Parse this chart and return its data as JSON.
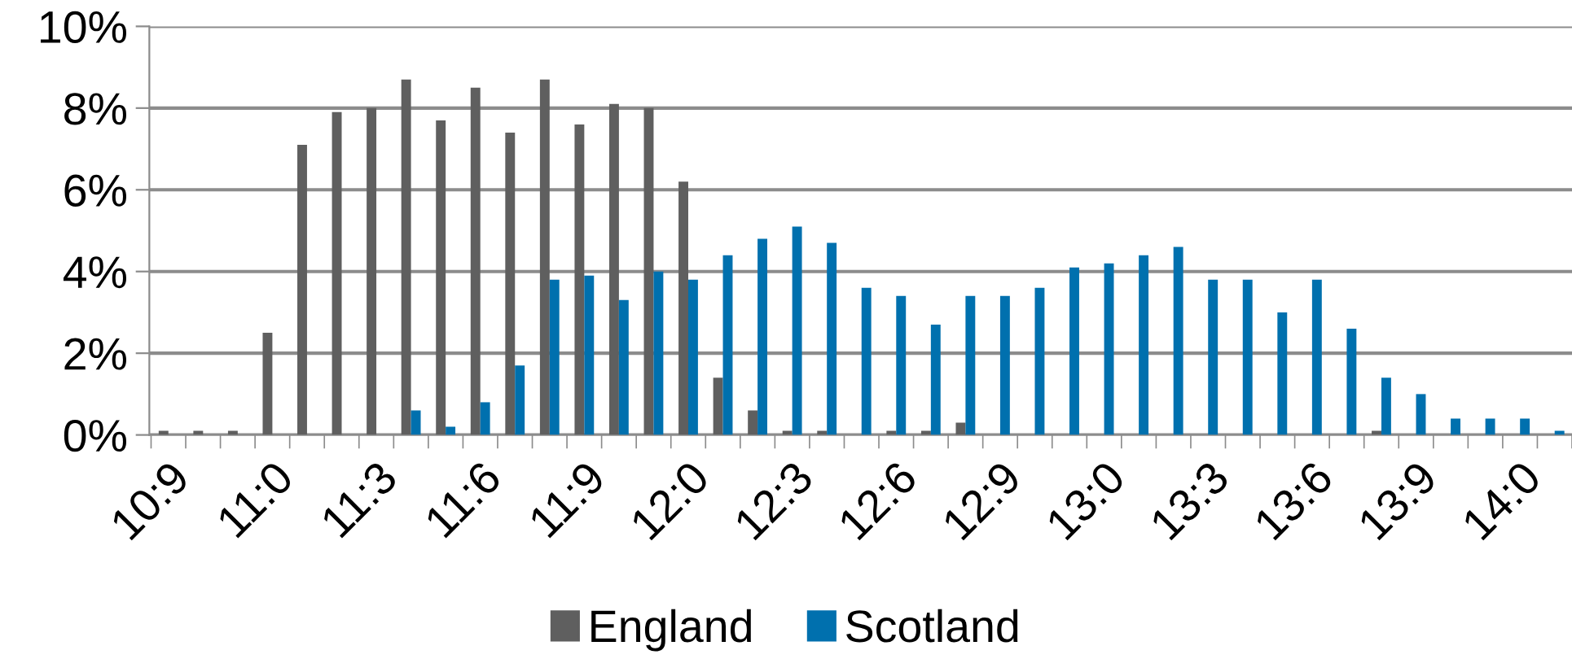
{
  "chart_data": {
    "type": "bar",
    "categories": [
      "10:9",
      null,
      null,
      "11:0",
      null,
      null,
      "11:3",
      null,
      null,
      "11:6",
      null,
      null,
      "11:9",
      null,
      null,
      "12:0",
      null,
      null,
      "12:3",
      null,
      null,
      "12:6",
      null,
      null,
      "12:9",
      null,
      null,
      "13:0",
      null,
      null,
      "13:3",
      null,
      null,
      "13:6",
      null,
      null,
      "13:9",
      null,
      null,
      "14:0",
      null
    ],
    "series": [
      {
        "name": "England",
        "color": "#5f5f5f",
        "values": [
          0.1,
          0.1,
          0.1,
          2.5,
          7.1,
          7.9,
          8.0,
          8.7,
          7.7,
          8.5,
          7.4,
          8.7,
          7.6,
          8.1,
          8.0,
          6.2,
          1.4,
          0.6,
          0.1,
          0.1,
          0,
          0.1,
          0.1,
          0.3,
          0,
          0,
          0,
          0,
          0,
          0,
          0,
          0,
          0,
          0,
          0,
          0.1,
          0,
          0,
          0,
          0,
          0
        ]
      },
      {
        "name": "Scotland",
        "color": "#0070ae",
        "values": [
          0,
          0,
          0,
          0,
          0,
          0,
          0,
          0.6,
          0.2,
          0.8,
          1.7,
          3.8,
          3.9,
          3.3,
          4.0,
          3.8,
          4.4,
          4.8,
          5.1,
          4.7,
          3.6,
          3.4,
          2.7,
          3.4,
          3.4,
          3.6,
          4.1,
          4.2,
          4.4,
          4.6,
          3.8,
          3.8,
          3.0,
          3.8,
          2.6,
          1.4,
          1.0,
          0.4,
          0.4,
          0.4,
          0.1
        ]
      }
    ],
    "ylim": [
      0,
      10
    ],
    "yticks": [
      {
        "value": 0,
        "label": "0%"
      },
      {
        "value": 2,
        "label": "2%"
      },
      {
        "value": 4,
        "label": "4%"
      },
      {
        "value": 6,
        "label": "6%"
      },
      {
        "value": 8,
        "label": "8%"
      },
      {
        "value": 10,
        "label": "10%"
      }
    ],
    "grid": "y",
    "legend": "bottom"
  }
}
